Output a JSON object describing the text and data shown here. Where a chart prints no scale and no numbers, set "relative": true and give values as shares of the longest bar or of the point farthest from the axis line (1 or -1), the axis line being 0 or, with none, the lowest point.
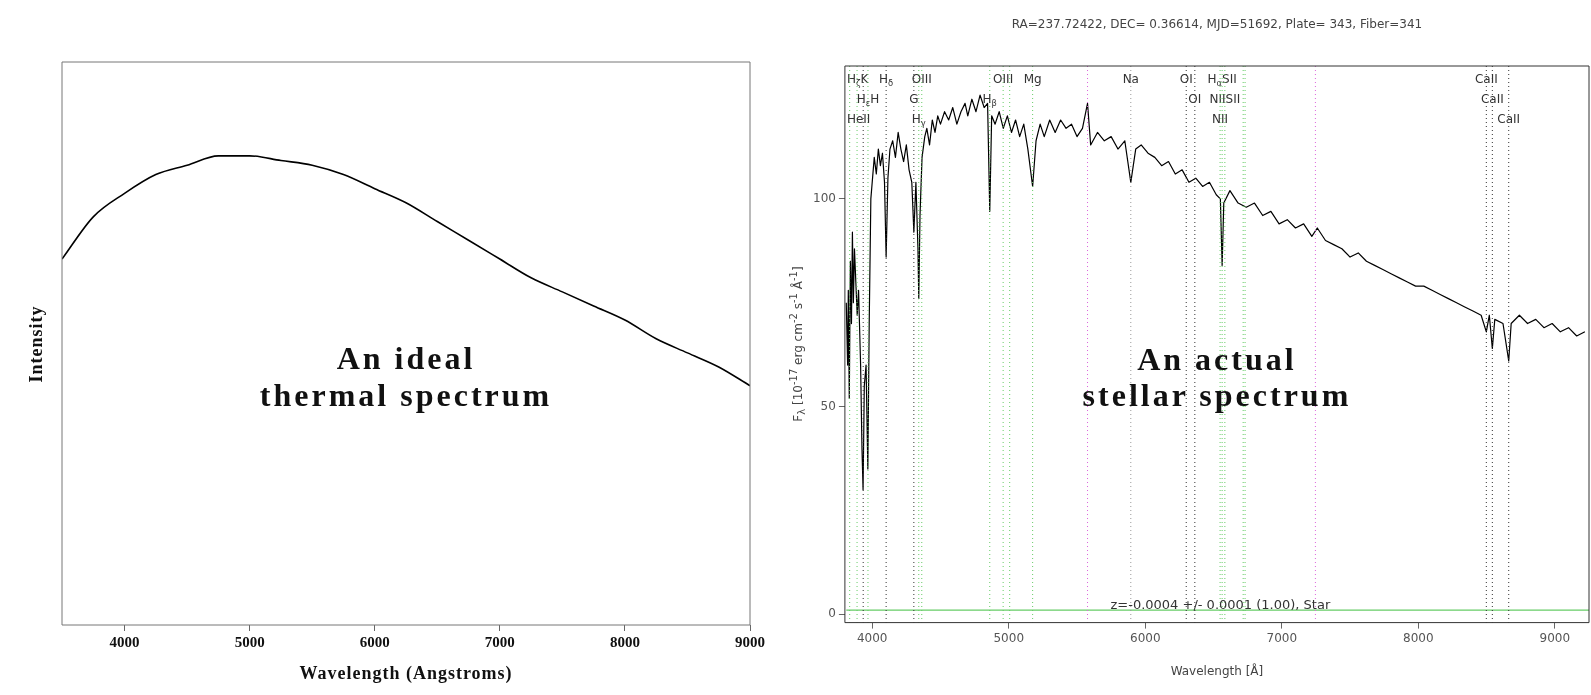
{
  "chart_data": [
    {
      "type": "line",
      "xlabel": "Wavelength (Angstroms)",
      "ylabel": "Intensity",
      "relative": true,
      "tick_labels": "x",
      "grid": false,
      "annotations": [
        "An ideal\nthermal spectrum"
      ],
      "xlim": [
        3500,
        9000
      ],
      "xticks": [
        4000,
        5000,
        6000,
        7000,
        8000,
        9000
      ],
      "x": [
        3500,
        3750,
        4000,
        4250,
        4500,
        4750,
        5000,
        5250,
        5500,
        5750,
        6000,
        6250,
        6500,
        6750,
        7000,
        7250,
        7500,
        7750,
        8000,
        8250,
        8500,
        8750,
        9000
      ],
      "series": [
        {
          "color": "#000000",
          "values": [
            0.78,
            0.87,
            0.92,
            0.96,
            0.98,
            1.0,
            1,
            0.99,
            0.98,
            0.96,
            0.93,
            0.9,
            0.86,
            0.82,
            0.78,
            0.74,
            0.71,
            0.68,
            0.65,
            0.61,
            0.58,
            0.55,
            0.51
          ]
        }
      ]
    },
    {
      "type": "line",
      "title": "RA=237.72422, DEC= 0.36614, MJD=51692, Plate= 343, Fiber=341",
      "xlabel": "Wavelength [Å]",
      "ylabel": "F$_{λ}$ [10$^{-17}$ erg cm$^{-2}$ s$^{-1}$ Å$^{-1}$]",
      "grid": false,
      "annotations": [
        "An actual\nstellar spectrum",
        {
          "text": "z=-0.0004 +/- 0.0001 (1.00), Star",
          "x": 6550,
          "y": 1
        }
      ],
      "xlim": [
        3800,
        9250
      ],
      "xticks": [
        4000,
        5000,
        6000,
        7000,
        8000,
        9000
      ],
      "ylim": [
        -2,
        132
      ],
      "yticks": [
        0,
        50,
        100
      ],
      "ref_lines": [
        {
          "axis": "x",
          "value": 3889,
          "label": "H$_{ζ}$K",
          "color": "#66cc66",
          "line_style": "dotted"
        },
        {
          "axis": "x",
          "value": 3969,
          "label": "H$_{ε}$H",
          "color": "#66cc66",
          "line_style": "dotted"
        },
        {
          "axis": "x",
          "value": 3835,
          "label": "HeII",
          "color": "#66cc66",
          "line_style": "dotted"
        },
        {
          "axis": "x",
          "value": 3934,
          "color": "#333333",
          "line_style": "dotted"
        },
        {
          "axis": "x",
          "value": 4102,
          "label": "H$_{δ}$",
          "color": "#333333",
          "line_style": "dotted"
        },
        {
          "axis": "x",
          "value": 4363,
          "label": "OIII",
          "color": "#66cc66",
          "line_style": "dotted"
        },
        {
          "axis": "x",
          "value": 4305,
          "label": "G",
          "color": "#333333",
          "line_style": "dotted"
        },
        {
          "axis": "x",
          "value": 4341,
          "label": "H$_{γ}$",
          "color": "#66cc66",
          "line_style": "dotted"
        },
        {
          "axis": "x",
          "value": 4959,
          "label": "OIII",
          "color": "#66cc66",
          "line_style": "dotted"
        },
        {
          "axis": "x",
          "value": 4861,
          "label": "H$_{β}$",
          "color": "#66cc66",
          "line_style": "dotted"
        },
        {
          "axis": "x",
          "value": 5007,
          "color": "#66cc66",
          "line_style": "dotted"
        },
        {
          "axis": "x",
          "value": 5175,
          "label": "Mg",
          "color": "#66cc66",
          "line_style": "dotted"
        },
        {
          "axis": "x",
          "value": 5577,
          "color": "#dd66dd",
          "line_style": "dotted"
        },
        {
          "axis": "x",
          "value": 5894,
          "label": "Na",
          "color": "#999999",
          "line_style": "dotted"
        },
        {
          "axis": "x",
          "value": 6300,
          "label": "OI",
          "color": "#333333",
          "line_style": "dotted"
        },
        {
          "axis": "x",
          "value": 6363,
          "label": "OI",
          "color": "#333333",
          "line_style": "dotted"
        },
        {
          "axis": "x",
          "value": 6563,
          "label": "H$_{α}$SII",
          "color": "#66cc66",
          "line_style": "dotted"
        },
        {
          "axis": "x",
          "value": 6583,
          "label": "NIISII",
          "color": "#66cc66",
          "line_style": "dotted"
        },
        {
          "axis": "x",
          "value": 6548,
          "label": "NII",
          "color": "#66cc66",
          "line_style": "dotted"
        },
        {
          "axis": "x",
          "value": 6717,
          "color": "#66cc66",
          "line_style": "dotted"
        },
        {
          "axis": "x",
          "value": 6731,
          "color": "#66cc66",
          "line_style": "dotted"
        },
        {
          "axis": "x",
          "value": 7246,
          "color": "#dd66dd",
          "line_style": "dotted"
        },
        {
          "axis": "x",
          "value": 8498,
          "label": "CaII",
          "color": "#333333",
          "line_style": "dotted"
        },
        {
          "axis": "x",
          "value": 8542,
          "label": "CaII",
          "color": "#333333",
          "line_style": "dotted"
        },
        {
          "axis": "x",
          "value": 8662,
          "label": "CaII",
          "color": "#333333",
          "line_style": "dotted"
        }
      ],
      "series": [
        {
          "color": "#66cc66",
          "x": [
            3810,
            4500,
            5500,
            6500,
            7500,
            8500,
            9250
          ],
          "values": [
            1,
            1,
            1,
            1,
            1,
            1,
            1
          ]
        },
        {
          "color": "#000000",
          "x": [
            3810,
            3820,
            3825,
            3832,
            3840,
            3848,
            3855,
            3862,
            3870,
            3880,
            3890,
            3900,
            3915,
            3925,
            3933,
            3942,
            3955,
            3968,
            3978,
            3990,
            4000,
            4015,
            4030,
            4045,
            4060,
            4075,
            4090,
            4102,
            4115,
            4130,
            4150,
            4170,
            4190,
            4210,
            4230,
            4250,
            4270,
            4290,
            4305,
            4320,
            4335,
            4341,
            4350,
            4365,
            4385,
            4400,
            4420,
            4440,
            4460,
            4480,
            4500,
            4530,
            4560,
            4590,
            4620,
            4650,
            4680,
            4700,
            4730,
            4760,
            4790,
            4820,
            4845,
            4861,
            4875,
            4900,
            4930,
            4960,
            4990,
            5020,
            5050,
            5080,
            5110,
            5140,
            5175,
            5200,
            5230,
            5260,
            5300,
            5340,
            5380,
            5420,
            5460,
            5500,
            5540,
            5577,
            5600,
            5650,
            5700,
            5750,
            5800,
            5850,
            5894,
            5930,
            5970,
            6020,
            6070,
            6120,
            6170,
            6220,
            6270,
            6320,
            6370,
            6420,
            6470,
            6520,
            6550,
            6563,
            6575,
            6620,
            6680,
            6740,
            6800,
            6860,
            6920,
            6980,
            7040,
            7100,
            7160,
            7220,
            7260,
            7320,
            7380,
            7440,
            7500,
            7560,
            7620,
            7680,
            7740,
            7800,
            7860,
            7920,
            7980,
            8040,
            8100,
            8160,
            8220,
            8280,
            8340,
            8400,
            8460,
            8498,
            8520,
            8542,
            8560,
            8620,
            8662,
            8680,
            8740,
            8800,
            8860,
            8920,
            8980,
            9040,
            9100,
            9160,
            9220
          ],
          "values": [
            75,
            60,
            78,
            52,
            85,
            70,
            92,
            75,
            88,
            80,
            72,
            78,
            60,
            40,
            30,
            55,
            60,
            35,
            70,
            100,
            104,
            110,
            106,
            112,
            108,
            111,
            104,
            86,
            105,
            112,
            114,
            110,
            116,
            112,
            109,
            113,
            107,
            104,
            92,
            104,
            88,
            76,
            96,
            110,
            115,
            117,
            113,
            119,
            116,
            120,
            118,
            121,
            119,
            122,
            118,
            121,
            123,
            120,
            124,
            121,
            125,
            122,
            123,
            97,
            120,
            118,
            121,
            117,
            120,
            116,
            119,
            115,
            118,
            112,
            103,
            114,
            118,
            115,
            119,
            116,
            119,
            117,
            118,
            115,
            117,
            123,
            113,
            116,
            114,
            115,
            112,
            114,
            104,
            112,
            113,
            111,
            110,
            108,
            109,
            106,
            107,
            104,
            105,
            103,
            104,
            101,
            100,
            84,
            99,
            102,
            99,
            98,
            99,
            96,
            97,
            94,
            95,
            93,
            94,
            91,
            93,
            90,
            89,
            88,
            86,
            87,
            85,
            84,
            83,
            82,
            81,
            80,
            79,
            79,
            78,
            77,
            76,
            75,
            74,
            73,
            72,
            68,
            72,
            64,
            71,
            70,
            61,
            70,
            72,
            70,
            71,
            69,
            70,
            68,
            69,
            67,
            68
          ]
        }
      ]
    }
  ]
}
